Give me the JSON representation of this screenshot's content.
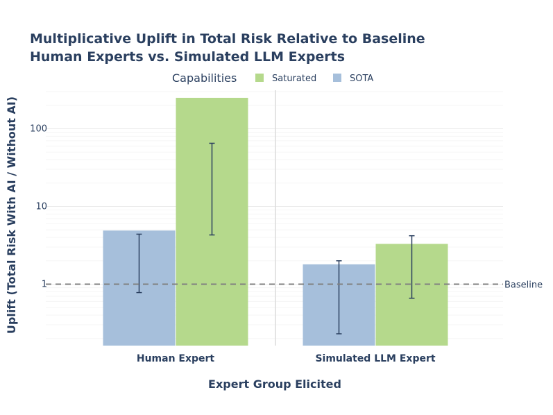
{
  "chart_data": {
    "type": "bar",
    "title": "Multiplicative Uplift in Total Risk Relative to Baseline",
    "subtitle": "Human Experts vs. Simulated LLM Experts",
    "xlabel": "Expert Group Elicited",
    "ylabel": "Uplift (Total Risk With AI / Without AI)",
    "y_scale": "log",
    "ylim": [
      0.2,
      300
    ],
    "yticks": [
      1,
      10,
      100
    ],
    "ytick_labels": [
      "1",
      "10",
      "100"
    ],
    "categories": [
      "Human Expert",
      "Simulated LLM Expert"
    ],
    "legend_title": "Capabilities",
    "legend_position": "top",
    "series": [
      {
        "name": "SOTA",
        "color": "#a6bfdb",
        "values": [
          4.9,
          1.8
        ],
        "error_low": [
          0.78,
          0.23
        ],
        "error_high": [
          4.4,
          2.0
        ]
      },
      {
        "name": "Saturated",
        "color": "#b5d98c",
        "values": [
          250,
          3.3
        ],
        "error_low": [
          4.3,
          0.66
        ],
        "error_high": [
          65,
          4.2
        ]
      }
    ],
    "reference_line": {
      "value": 1,
      "label": "Baseline",
      "style": "dashed",
      "color": "#808080"
    },
    "grid": true,
    "error_bar_color": "#2a3f5f"
  }
}
